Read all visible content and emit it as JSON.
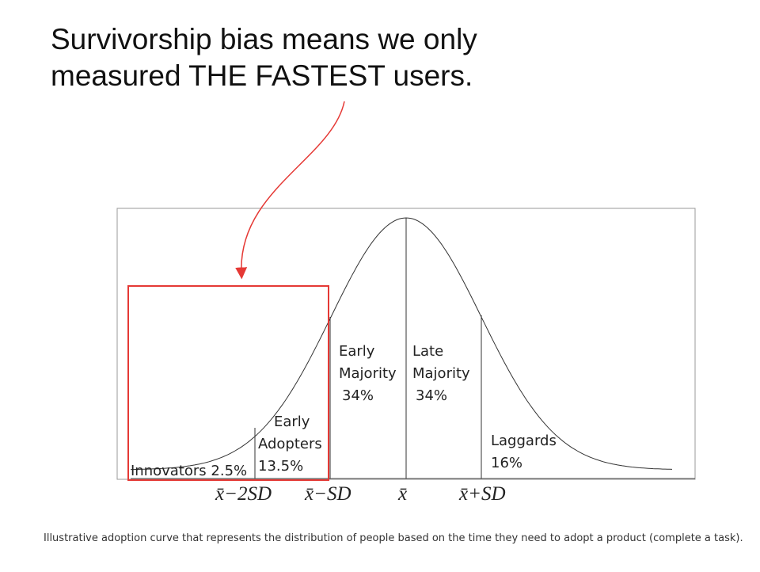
{
  "headline": [
    "Survivorship bias means we only",
    "measured THE FASTEST users."
  ],
  "segments": [
    {
      "lines": [
        "Innovators 2.5%"
      ]
    },
    {
      "lines": [
        "Early",
        "Adopters",
        "13.5%"
      ]
    },
    {
      "lines": [
        "Early",
        "Majority",
        "34%"
      ]
    },
    {
      "lines": [
        "Late",
        "Majority",
        "34%"
      ]
    },
    {
      "lines": [
        "Laggards",
        "16%"
      ]
    }
  ],
  "axis_labels": [
    "x̄−2SD",
    "x̄−SD",
    "x̄",
    "x̄+SD"
  ],
  "caption": "Illustrative adoption curve that represents the distribution of people based on the time they need to adopt a product (complete a task)."
}
